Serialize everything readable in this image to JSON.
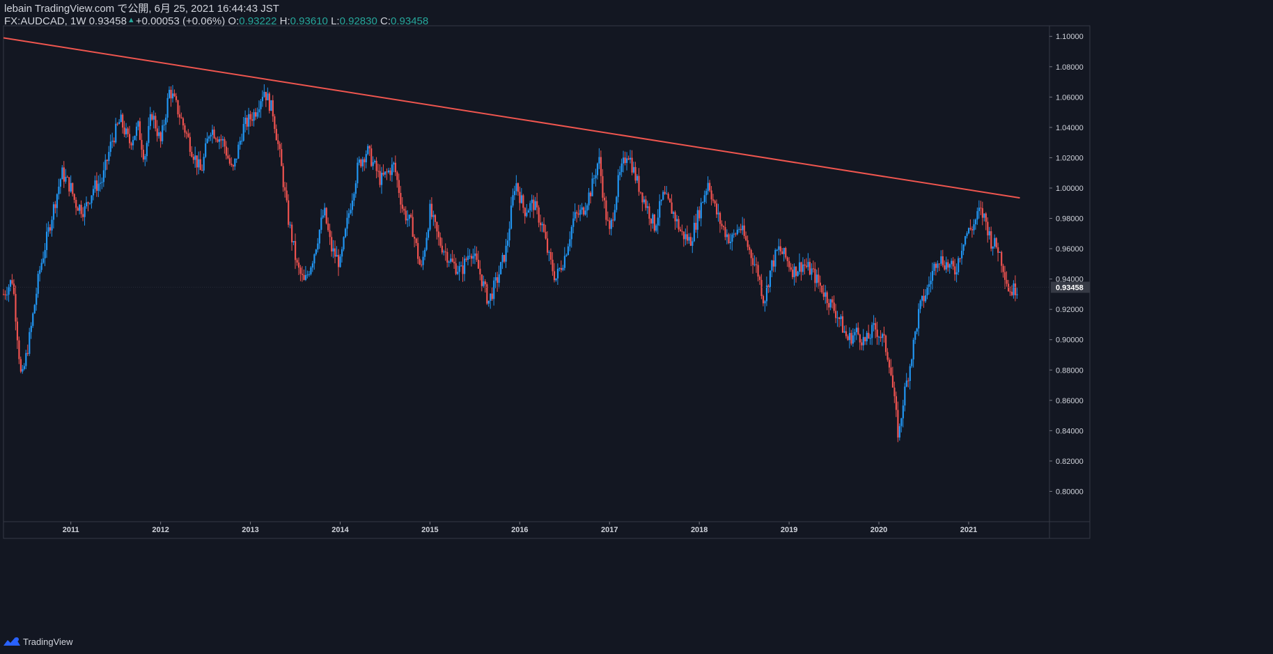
{
  "header": {
    "published_line": "lebain TradingView.com で公開, 6月 25, 2021 16:44:43 JST",
    "symbol": "FX:AUDCAD, 1W",
    "last": "0.93458",
    "change": "+0.00053 (+0.06%)",
    "open_label": "O:",
    "open": "0.93222",
    "high_label": "H:",
    "high": "0.93610",
    "low_label": "L:",
    "low": "0.92830",
    "close_label": "C:",
    "close": "0.93458"
  },
  "footer": {
    "brand": "TradingView",
    "logo_icon": "tradingview-logo-icon"
  },
  "colors": {
    "background": "#131722",
    "up": "#2196f3",
    "down": "#ef5350",
    "trendline": "#f0564f",
    "text": "#d1d4dc",
    "accent": "#26a69a",
    "grid": "#2a2e39"
  },
  "chart_data": {
    "type": "candlestick",
    "symbol": "FX:AUDCAD",
    "interval": "1W",
    "x_ticks": [
      "2011",
      "2012",
      "2013",
      "2014",
      "2015",
      "2016",
      "2017",
      "2018",
      "2019",
      "2020",
      "2021"
    ],
    "y_ticks": [
      "1.10000",
      "1.08000",
      "1.06000",
      "1.04000",
      "1.02000",
      "1.00000",
      "0.98000",
      "0.96000",
      "0.94000",
      "0.92000",
      "0.90000",
      "0.88000",
      "0.86000",
      "0.84000",
      "0.82000",
      "0.80000"
    ],
    "ylim": [
      0.78,
      1.107
    ],
    "last_price_label": "0.93458",
    "trendline": {
      "color": "#f0564f",
      "points": [
        [
          "2010.25",
          1.099
        ],
        [
          "2021.57",
          0.9935
        ]
      ]
    },
    "close_path": [
      [
        "2010.25",
        0.93
      ],
      [
        "2010.35",
        0.94
      ],
      [
        "2010.45",
        0.872
      ],
      [
        "2010.55",
        0.905
      ],
      [
        "2010.65",
        0.945
      ],
      [
        "2010.80",
        0.985
      ],
      [
        "2010.90",
        1.01
      ],
      [
        "2011.00",
        1.0
      ],
      [
        "2011.05",
        0.99
      ],
      [
        "2011.15",
        0.985
      ],
      [
        "2011.25",
        1.0
      ],
      [
        "2011.35",
        1.005
      ],
      [
        "2011.45",
        1.03
      ],
      [
        "2011.55",
        1.045
      ],
      [
        "2011.65",
        1.03
      ],
      [
        "2011.75",
        1.04
      ],
      [
        "2011.82",
        1.02
      ],
      [
        "2011.90",
        1.05
      ],
      [
        "2012.00",
        1.03
      ],
      [
        "2012.10",
        1.065
      ],
      [
        "2012.20",
        1.05
      ],
      [
        "2012.35",
        1.025
      ],
      [
        "2012.45",
        1.01
      ],
      [
        "2012.55",
        1.04
      ],
      [
        "2012.70",
        1.03
      ],
      [
        "2012.80",
        1.01
      ],
      [
        "2012.92",
        1.04
      ],
      [
        "2013.05",
        1.05
      ],
      [
        "2013.15",
        1.065
      ],
      [
        "2013.25",
        1.05
      ],
      [
        "2013.33",
        1.02
      ],
      [
        "2013.42",
        0.98
      ],
      [
        "2013.52",
        0.948
      ],
      [
        "2013.60",
        0.937
      ],
      [
        "2013.70",
        0.955
      ],
      [
        "2013.82",
        0.985
      ],
      [
        "2013.90",
        0.96
      ],
      [
        "2014.00",
        0.95
      ],
      [
        "2014.10",
        0.985
      ],
      [
        "2014.20",
        1.015
      ],
      [
        "2014.30",
        1.025
      ],
      [
        "2014.45",
        1.005
      ],
      [
        "2014.60",
        1.015
      ],
      [
        "2014.70",
        0.985
      ],
      [
        "2014.80",
        0.975
      ],
      [
        "2014.90",
        0.945
      ],
      [
        "2015.00",
        0.985
      ],
      [
        "2015.10",
        0.965
      ],
      [
        "2015.25",
        0.95
      ],
      [
        "2015.35",
        0.945
      ],
      [
        "2015.45",
        0.96
      ],
      [
        "2015.55",
        0.945
      ],
      [
        "2015.65",
        0.925
      ],
      [
        "2015.75",
        0.94
      ],
      [
        "2015.85",
        0.96
      ],
      [
        "2015.95",
        1.005
      ],
      [
        "2016.05",
        0.985
      ],
      [
        "2016.15",
        0.99
      ],
      [
        "2016.25",
        0.975
      ],
      [
        "2016.32",
        0.955
      ],
      [
        "2016.40",
        0.94
      ],
      [
        "2016.50",
        0.955
      ],
      [
        "2016.60",
        0.98
      ],
      [
        "2016.70",
        0.985
      ],
      [
        "2016.80",
        1.0
      ],
      [
        "2016.88",
        1.02
      ],
      [
        "2016.95",
        0.985
      ],
      [
        "2017.00",
        0.97
      ],
      [
        "2017.10",
        1.005
      ],
      [
        "2017.20",
        1.025
      ],
      [
        "2017.30",
        1.005
      ],
      [
        "2017.40",
        0.99
      ],
      [
        "2017.50",
        0.975
      ],
      [
        "2017.60",
        0.995
      ],
      [
        "2017.70",
        0.985
      ],
      [
        "2017.80",
        0.97
      ],
      [
        "2017.90",
        0.965
      ],
      [
        "2018.00",
        0.985
      ],
      [
        "2018.10",
        1.005
      ],
      [
        "2018.18",
        0.985
      ],
      [
        "2018.25",
        0.975
      ],
      [
        "2018.35",
        0.965
      ],
      [
        "2018.45",
        0.975
      ],
      [
        "2018.55",
        0.96
      ],
      [
        "2018.65",
        0.945
      ],
      [
        "2018.72",
        0.925
      ],
      [
        "2018.80",
        0.948
      ],
      [
        "2018.88",
        0.96
      ],
      [
        "2018.95",
        0.955
      ],
      [
        "2019.05",
        0.945
      ],
      [
        "2019.15",
        0.95
      ],
      [
        "2019.25",
        0.945
      ],
      [
        "2019.35",
        0.935
      ],
      [
        "2019.45",
        0.925
      ],
      [
        "2019.55",
        0.915
      ],
      [
        "2019.65",
        0.9
      ],
      [
        "2019.75",
        0.905
      ],
      [
        "2019.85",
        0.898
      ],
      [
        "2019.95",
        0.908
      ],
      [
        "2020.05",
        0.9
      ],
      [
        "2020.12",
        0.885
      ],
      [
        "2020.18",
        0.855
      ],
      [
        "2020.22",
        0.835
      ],
      [
        "2020.27",
        0.86
      ],
      [
        "2020.35",
        0.885
      ],
      [
        "2020.45",
        0.92
      ],
      [
        "2020.55",
        0.935
      ],
      [
        "2020.65",
        0.955
      ],
      [
        "2020.75",
        0.95
      ],
      [
        "2020.85",
        0.945
      ],
      [
        "2020.95",
        0.968
      ],
      [
        "2021.05",
        0.975
      ],
      [
        "2021.12",
        0.985
      ],
      [
        "2021.18",
        0.98
      ],
      [
        "2021.25",
        0.965
      ],
      [
        "2021.33",
        0.96
      ],
      [
        "2021.40",
        0.945
      ],
      [
        "2021.45",
        0.932
      ],
      [
        "2021.50",
        0.933
      ],
      [
        "2021.55",
        0.935
      ]
    ]
  }
}
